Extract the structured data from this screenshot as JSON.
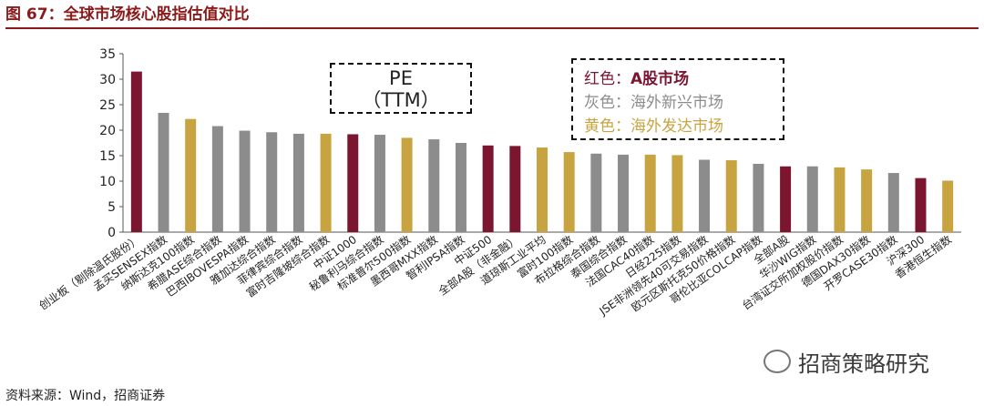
{
  "header": {
    "title": "图 67：全球市场核心股指估值对比"
  },
  "annotation": {
    "pe_line1": "PE",
    "pe_line2": "（TTM）"
  },
  "legend": [
    {
      "label": "红色：",
      "value": "A股市场",
      "color": "#7b1530"
    },
    {
      "label": "灰色：",
      "value": "海外新兴市场",
      "color": "#8c8c8c"
    },
    {
      "label": "黄色：",
      "value": "海外发达市场",
      "color": "#c8a441"
    }
  ],
  "footer": {
    "source": "资料来源：Wind，招商证券",
    "watermark": "招商策略研究"
  },
  "chart_data": {
    "type": "bar",
    "ylim": [
      0,
      35
    ],
    "yticks": [
      0,
      5,
      10,
      15,
      20,
      25,
      30,
      35
    ],
    "grid": false,
    "categories": [
      "创业板（剔除温氏股份）",
      "孟买SENSEX指数",
      "纳斯达克100指数",
      "希腊ASE综合指数",
      "巴西IBOVESPA指数",
      "雅加达综合指数",
      "菲律宾综合指数",
      "富时吉隆坡综合指数",
      "中证1000",
      "秘鲁利马综合指数",
      "标准普尔500指数",
      "墨西哥MXX指数",
      "智利IPSA指数",
      "中证500",
      "全部A股（非金融）",
      "道琼斯工业平均",
      "富时100指数",
      "布拉格综合指数",
      "泰国综合指数",
      "法国CAC40指数",
      "日经225指数",
      "JSE非洲领先40可交易指数",
      "欧元区斯托克50价格指数",
      "哥伦比亚COLCAP指数",
      "全部A股",
      "华沙WIG指数",
      "台湾证交所加权股价指数",
      "德国DAX30指数",
      "开罗CASE30指数",
      "沪深300",
      "香港恒生指数"
    ],
    "values": [
      31.5,
      23.4,
      22.2,
      20.8,
      19.9,
      19.6,
      19.3,
      19.3,
      19.2,
      19.1,
      18.5,
      18.2,
      17.5,
      17.0,
      16.9,
      16.6,
      15.7,
      15.4,
      15.2,
      15.2,
      15.1,
      14.2,
      14.1,
      13.4,
      12.9,
      12.9,
      12.7,
      12.3,
      11.6,
      10.6,
      10.1
    ],
    "colors": [
      "#7b1530",
      "#8c8c8c",
      "#c8a441",
      "#8c8c8c",
      "#8c8c8c",
      "#8c8c8c",
      "#8c8c8c",
      "#c8a441",
      "#7b1530",
      "#8c8c8c",
      "#c8a441",
      "#8c8c8c",
      "#8c8c8c",
      "#7b1530",
      "#7b1530",
      "#c8a441",
      "#c8a441",
      "#8c8c8c",
      "#8c8c8c",
      "#c8a441",
      "#c8a441",
      "#8c8c8c",
      "#c8a441",
      "#8c8c8c",
      "#7b1530",
      "#8c8c8c",
      "#c8a441",
      "#c8a441",
      "#8c8c8c",
      "#7b1530",
      "#c8a441"
    ]
  }
}
